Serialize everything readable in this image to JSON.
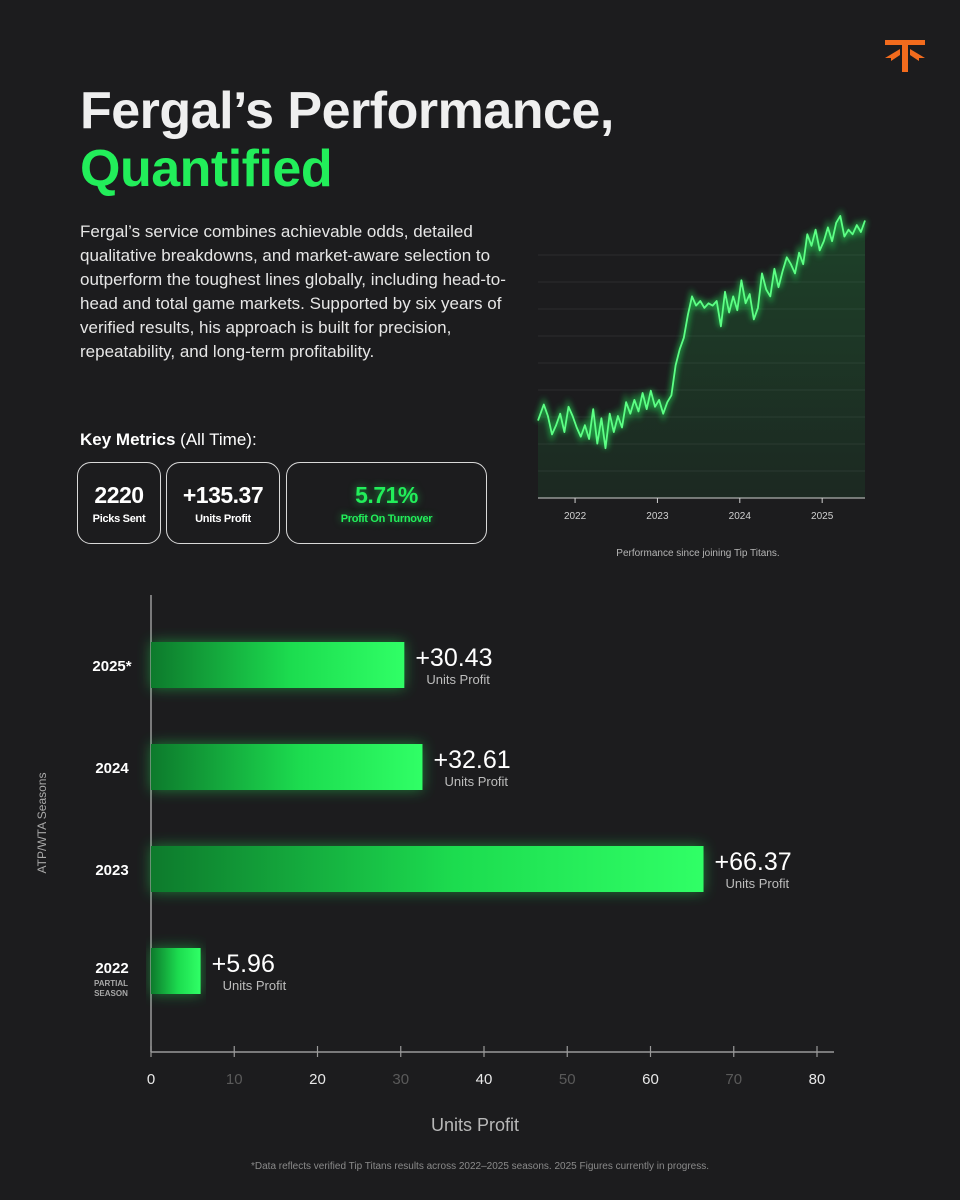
{
  "header": {
    "title_line1": "Fergal’s Performance,",
    "title_line2": "Quantified",
    "logo_icon": "tip-titans-logo-icon",
    "logo_color": "#f26b1d"
  },
  "intro": "Fergal’s service combines achievable odds, detailed qualitative breakdowns, and market-aware selection to outperform the toughest lines globally, including head-to-head and total game markets. Supported by six years of verified results, his approach is built for precision, repeatability, and long-term profitability.",
  "key_metrics": {
    "heading_bold": "Key Metrics",
    "heading_rest": " (All Time):",
    "cards": [
      {
        "value": "2220",
        "label": "Picks Sent"
      },
      {
        "value": "+135.37",
        "label": "Units Profit"
      },
      {
        "value": "5.71%",
        "label": "Profit On Turnover"
      }
    ]
  },
  "colors": {
    "accent": "#22ee5a",
    "background": "#1c1c1e",
    "text": "#ffffff",
    "logo": "#f26b1d"
  },
  "chart_data": [
    {
      "type": "line",
      "caption": "Performance since joining Tip Titans.",
      "x_ticks": [
        "2022",
        "2023",
        "2024",
        "2025"
      ],
      "xlim": [
        2021.55,
        2025.52
      ],
      "ylim": [
        0,
        10
      ],
      "grid": true,
      "series": [
        {
          "color": "#22ee5a",
          "points": [
            [
              2021.55,
              1.8
            ],
            [
              2021.62,
              2.5
            ],
            [
              2021.67,
              2.0
            ],
            [
              2021.72,
              1.2
            ],
            [
              2021.77,
              1.6
            ],
            [
              2021.82,
              2.1
            ],
            [
              2021.87,
              1.3
            ],
            [
              2021.92,
              2.4
            ],
            [
              2021.97,
              2.0
            ],
            [
              2022.02,
              1.5
            ],
            [
              2022.07,
              1.1
            ],
            [
              2022.12,
              1.6
            ],
            [
              2022.17,
              1.0
            ],
            [
              2022.22,
              2.3
            ],
            [
              2022.27,
              0.8
            ],
            [
              2022.32,
              1.9
            ],
            [
              2022.37,
              0.6
            ],
            [
              2022.42,
              2.1
            ],
            [
              2022.47,
              1.3
            ],
            [
              2022.52,
              2.0
            ],
            [
              2022.57,
              1.5
            ],
            [
              2022.62,
              2.6
            ],
            [
              2022.67,
              2.1
            ],
            [
              2022.72,
              2.7
            ],
            [
              2022.77,
              2.2
            ],
            [
              2022.82,
              3.0
            ],
            [
              2022.87,
              2.3
            ],
            [
              2022.92,
              3.1
            ],
            [
              2022.97,
              2.4
            ],
            [
              2023.02,
              2.7
            ],
            [
              2023.07,
              2.1
            ],
            [
              2023.12,
              2.6
            ],
            [
              2023.17,
              2.9
            ],
            [
              2023.22,
              4.2
            ],
            [
              2023.27,
              4.9
            ],
            [
              2023.32,
              5.4
            ],
            [
              2023.37,
              6.4
            ],
            [
              2023.42,
              7.2
            ],
            [
              2023.47,
              6.8
            ],
            [
              2023.52,
              7.0
            ],
            [
              2023.57,
              6.7
            ],
            [
              2023.62,
              6.9
            ],
            [
              2023.67,
              6.8
            ],
            [
              2023.72,
              7.0
            ],
            [
              2023.77,
              5.9
            ],
            [
              2023.82,
              7.4
            ],
            [
              2023.87,
              6.5
            ],
            [
              2023.92,
              7.2
            ],
            [
              2023.97,
              6.6
            ],
            [
              2024.02,
              7.9
            ],
            [
              2024.07,
              6.9
            ],
            [
              2024.12,
              7.3
            ],
            [
              2024.17,
              6.2
            ],
            [
              2024.22,
              6.7
            ],
            [
              2024.27,
              8.2
            ],
            [
              2024.32,
              7.5
            ],
            [
              2024.37,
              7.2
            ],
            [
              2024.42,
              8.4
            ],
            [
              2024.47,
              7.6
            ],
            [
              2024.52,
              8.3
            ],
            [
              2024.57,
              8.9
            ],
            [
              2024.62,
              8.6
            ],
            [
              2024.67,
              8.2
            ],
            [
              2024.72,
              9.1
            ],
            [
              2024.77,
              8.6
            ],
            [
              2024.82,
              9.9
            ],
            [
              2024.87,
              9.4
            ],
            [
              2024.92,
              10.1
            ],
            [
              2024.97,
              9.2
            ],
            [
              2025.02,
              9.6
            ],
            [
              2025.07,
              10.2
            ],
            [
              2025.12,
              9.6
            ],
            [
              2025.17,
              10.4
            ],
            [
              2025.22,
              10.7
            ],
            [
              2025.27,
              9.8
            ],
            [
              2025.32,
              10.1
            ],
            [
              2025.37,
              9.9
            ],
            [
              2025.42,
              10.3
            ],
            [
              2025.47,
              10.0
            ],
            [
              2025.52,
              10.5
            ]
          ]
        }
      ]
    },
    {
      "type": "bar",
      "orientation": "horizontal",
      "xlabel": "Units Profit",
      "ylabel": "ATP/WTA Seasons",
      "xlim": [
        0,
        80
      ],
      "x_ticks": [
        0,
        10,
        20,
        30,
        40,
        50,
        60,
        70,
        80
      ],
      "categories": [
        "2025*",
        "2024",
        "2023",
        "2022"
      ],
      "category_sublabels": [
        "",
        "",
        "",
        "PARTIAL SEASON"
      ],
      "values": [
        30.43,
        32.61,
        66.37,
        5.96
      ],
      "value_labels": [
        "+30.43",
        "+32.61",
        "+66.37",
        "+5.96"
      ],
      "value_unit": "Units Profit",
      "bar_color": "#22ee5a"
    }
  ],
  "footnote": "*Data reflects verified Tip Titans results across 2022–2025 seasons. 2025 Figures currently in progress."
}
